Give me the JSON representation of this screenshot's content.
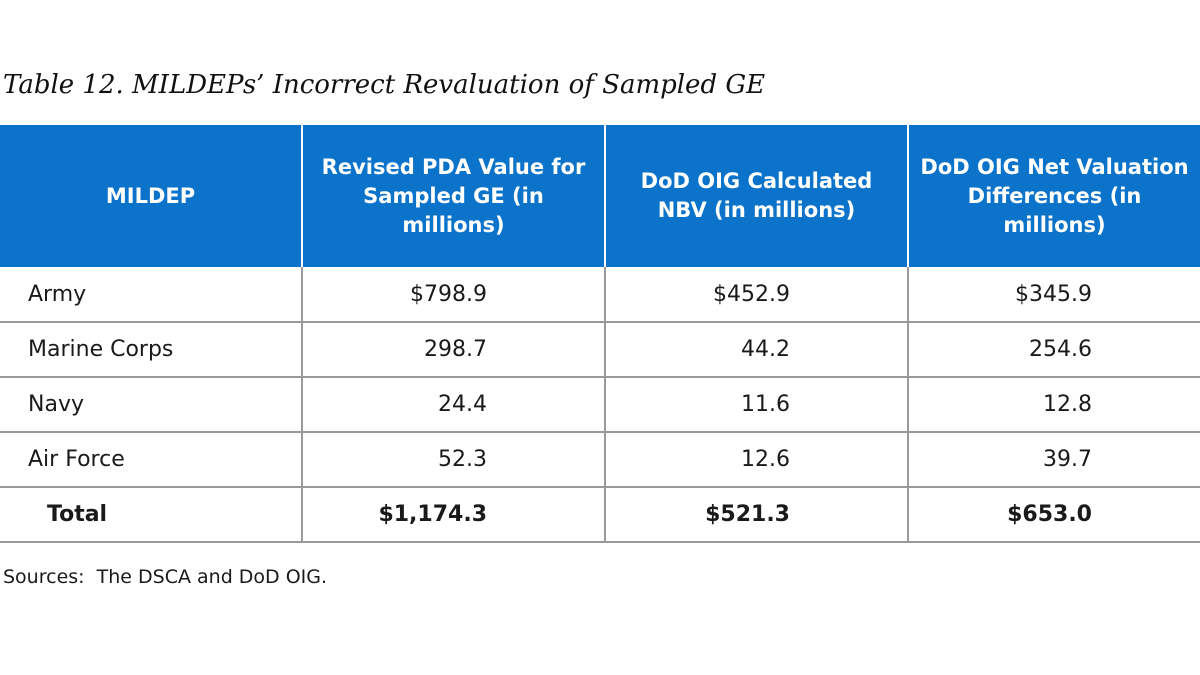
{
  "caption": "Table 12.  MILDEPs’ Incorrect Revaluation of Sampled GE",
  "table": {
    "headers": [
      "MILDEP",
      "Revised PDA Value for Sampled GE (in millions)",
      "DoD OIG Calculated NBV (in millions)",
      "DoD OIG Net Valuation Differences (in millions)"
    ],
    "rows": [
      [
        "Army",
        "$798.9",
        "$452.9",
        "$345.9"
      ],
      [
        "Marine Corps",
        "298.7",
        "44.2",
        "254.6"
      ],
      [
        "Navy",
        "24.4",
        "11.6",
        "12.8"
      ],
      [
        "Air Force",
        "52.3",
        "12.6",
        "39.7"
      ]
    ],
    "total": [
      "Total",
      "$1,174.3",
      "$521.3",
      "$653.0"
    ]
  },
  "sources": "Sources:  The DSCA and DoD OIG.",
  "colors": {
    "header_background": "#0b73c9",
    "header_text": "#ffffff",
    "grid_lines": "#9a9a9a"
  }
}
